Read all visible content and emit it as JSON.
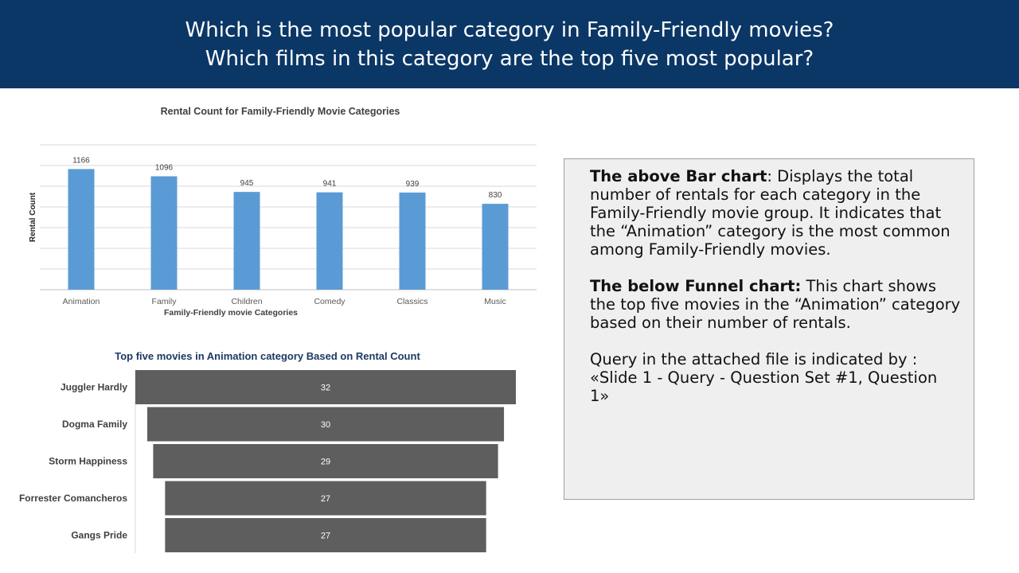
{
  "header": {
    "line1": "Which is the most popular category in Family-Friendly movies?",
    "line2": "Which films in this category are the top five most popular?"
  },
  "chart_data": [
    {
      "type": "bar",
      "title": "Rental Count for Family-Friendly Movie Categories",
      "xlabel": "Family-Friendly movie Categories",
      "ylabel": "Rental Count",
      "categories": [
        "Animation",
        "Family",
        "Children",
        "Comedy",
        "Classics",
        "Music"
      ],
      "values": [
        1166,
        1096,
        945,
        941,
        939,
        830
      ],
      "ylim": [
        0,
        1400
      ],
      "grid": true,
      "color": "#5b9bd5"
    },
    {
      "type": "funnel",
      "title": "Top five movies in Animation category Based on Rental Count",
      "categories": [
        "Juggler Hardly",
        "Dogma Family",
        "Storm Happiness",
        "Forrester Comancheros",
        "Gangs Pride"
      ],
      "values": [
        32,
        30,
        29,
        27,
        27
      ],
      "color": "#5e5e5e"
    }
  ],
  "description": {
    "bar_heading": "The above Bar chart",
    "bar_text": ": Displays the total number of rentals for each category in the Family-Friendly movie group. It indicates that the “Animation” category is the most common among Family-Friendly movies.",
    "funnel_heading": "The below Funnel chart:",
    "funnel_text": " This chart shows the top five movies in the “Animation” category based on their number of rentals.",
    "query_text": "Query in the attached file is indicated by : «Slide 1 - Query - Question Set #1, Question 1»"
  }
}
